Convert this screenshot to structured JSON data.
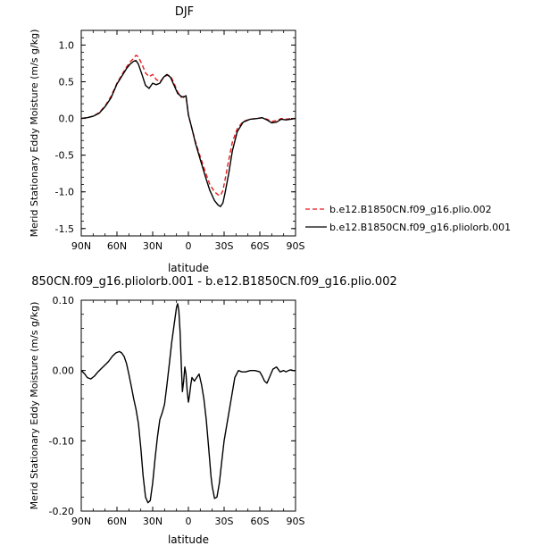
{
  "chart_data": [
    {
      "type": "line",
      "title": "DJF",
      "xlabel": "latitude",
      "ylabel": "Merid Stationary Eddy Moisture (m/s g/kg)",
      "xlim": [
        90,
        -90
      ],
      "ylim": [
        -1.6,
        1.2
      ],
      "xticks": [
        90,
        60,
        30,
        0,
        -30,
        -60,
        -90
      ],
      "xticklabels": [
        "90N",
        "60N",
        "30N",
        "0",
        "30S",
        "60S",
        "90S"
      ],
      "yticks": [
        1.0,
        0.5,
        0.0,
        -0.5,
        -1.0,
        -1.5
      ],
      "yticklabels": [
        "1.0",
        "0.5",
        "0.0",
        "-0.5",
        "-1.0",
        "-1.5"
      ],
      "legend_position": "right",
      "series": [
        {
          "name": "b.e12.B1850CN.f09_g16.plio.002",
          "color": "#e41a1c",
          "dash": "dashed",
          "x": [
            90,
            85,
            80,
            75,
            70,
            65,
            60,
            55,
            52,
            49,
            46,
            44,
            42,
            39,
            36,
            33,
            30,
            27,
            24,
            21,
            18,
            15,
            12,
            9,
            6,
            4,
            2,
            0,
            -3,
            -6,
            -10,
            -14,
            -18,
            -22,
            -25,
            -27,
            -29,
            -31,
            -34,
            -37,
            -41,
            -46,
            -52,
            -58,
            -62,
            -66,
            -70,
            -74,
            -78,
            -82,
            -86,
            -90
          ],
          "y": [
            0.0,
            0.01,
            0.03,
            0.08,
            0.17,
            0.3,
            0.48,
            0.62,
            0.7,
            0.77,
            0.82,
            0.86,
            0.84,
            0.74,
            0.62,
            0.57,
            0.6,
            0.53,
            0.5,
            0.55,
            0.59,
            0.58,
            0.48,
            0.36,
            0.29,
            0.3,
            0.3,
            0.05,
            -0.14,
            -0.32,
            -0.52,
            -0.72,
            -0.9,
            -1.0,
            -1.04,
            -1.05,
            -0.98,
            -0.82,
            -0.56,
            -0.32,
            -0.14,
            -0.04,
            -0.01,
            0.0,
            0.01,
            -0.01,
            -0.04,
            -0.03,
            0.0,
            -0.01,
            0.0,
            0.0
          ]
        },
        {
          "name": "b.e12.B1850CN.f09_g16.pliolorb.001",
          "color": "#000000",
          "dash": "solid",
          "x": [
            90,
            85,
            80,
            75,
            70,
            65,
            60,
            55,
            52,
            49,
            46,
            44,
            42,
            39,
            36,
            33,
            30,
            27,
            24,
            21,
            18,
            15,
            12,
            9,
            6,
            4,
            2,
            0,
            -3,
            -6,
            -10,
            -14,
            -18,
            -22,
            -25,
            -27,
            -29,
            -31,
            -34,
            -37,
            -41,
            -46,
            -52,
            -58,
            -62,
            -66,
            -70,
            -74,
            -78,
            -82,
            -86,
            -90
          ],
          "y": [
            0.0,
            0.01,
            0.03,
            0.07,
            0.16,
            0.28,
            0.47,
            0.6,
            0.68,
            0.74,
            0.78,
            0.79,
            0.74,
            0.6,
            0.45,
            0.41,
            0.48,
            0.46,
            0.48,
            0.56,
            0.6,
            0.56,
            0.45,
            0.34,
            0.3,
            0.29,
            0.31,
            0.05,
            -0.14,
            -0.34,
            -0.56,
            -0.78,
            -0.98,
            -1.12,
            -1.18,
            -1.2,
            -1.15,
            -1.0,
            -0.74,
            -0.44,
            -0.18,
            -0.05,
            -0.01,
            0.0,
            0.01,
            -0.02,
            -0.06,
            -0.05,
            -0.01,
            -0.02,
            -0.01,
            0.0
          ]
        }
      ]
    },
    {
      "type": "line",
      "title": "850CN.f09_g16.pliolorb.001 - b.e12.B1850CN.f09_g16.plio.002",
      "xlabel": "latitude",
      "ylabel": "Merid Stationary Eddy Moisture (m/s g/kg)",
      "xlim": [
        90,
        -90
      ],
      "ylim": [
        -0.2,
        0.1
      ],
      "xticks": [
        90,
        60,
        30,
        0,
        -30,
        -60,
        -90
      ],
      "xticklabels": [
        "90N",
        "60N",
        "30N",
        "0",
        "30S",
        "60S",
        "90S"
      ],
      "yticks": [
        0.1,
        0.0,
        -0.1,
        -0.2
      ],
      "yticklabels": [
        "0.10",
        "0.00",
        "-0.10",
        "-0.20"
      ],
      "series": [
        {
          "color": "#000000",
          "dash": "solid",
          "x": [
            90,
            87,
            85,
            82,
            79,
            76,
            73,
            70,
            67,
            64,
            61,
            58,
            56,
            54,
            52,
            50,
            48,
            46,
            44,
            42,
            40,
            38,
            36,
            34,
            32,
            30,
            28,
            26,
            24,
            22,
            20,
            18,
            16,
            14,
            12,
            10,
            9,
            8,
            7,
            6,
            5,
            4,
            3,
            2,
            1,
            0,
            -1,
            -2,
            -3,
            -5,
            -7,
            -9,
            -11,
            -13,
            -15,
            -17,
            -19,
            -20,
            -22,
            -24,
            -26,
            -28,
            -30,
            -33,
            -36,
            -39,
            -42,
            -45,
            -48,
            -52,
            -56,
            -60,
            -62,
            -64,
            -66,
            -68,
            -71,
            -74,
            -77,
            -80,
            -82,
            -84,
            -86,
            -88,
            -90
          ],
          "y": [
            0.0,
            -0.005,
            -0.01,
            -0.012,
            -0.008,
            -0.002,
            0.003,
            0.008,
            0.013,
            0.02,
            0.025,
            0.027,
            0.025,
            0.02,
            0.01,
            -0.005,
            -0.022,
            -0.04,
            -0.055,
            -0.075,
            -0.11,
            -0.15,
            -0.18,
            -0.188,
            -0.185,
            -0.16,
            -0.125,
            -0.095,
            -0.07,
            -0.06,
            -0.048,
            -0.02,
            0.01,
            0.04,
            0.065,
            0.09,
            0.095,
            0.085,
            0.055,
            0.01,
            -0.03,
            -0.015,
            0.005,
            -0.005,
            -0.03,
            -0.045,
            -0.035,
            -0.02,
            -0.01,
            -0.015,
            -0.01,
            -0.005,
            -0.02,
            -0.04,
            -0.07,
            -0.11,
            -0.15,
            -0.165,
            -0.182,
            -0.18,
            -0.16,
            -0.13,
            -0.1,
            -0.07,
            -0.04,
            -0.01,
            0.0,
            -0.002,
            -0.002,
            0.0,
            0.0,
            -0.002,
            -0.008,
            -0.015,
            -0.018,
            -0.01,
            0.002,
            0.005,
            -0.002,
            0.0,
            -0.002,
            0.0,
            0.001,
            0.0,
            0.0
          ]
        }
      ]
    }
  ]
}
